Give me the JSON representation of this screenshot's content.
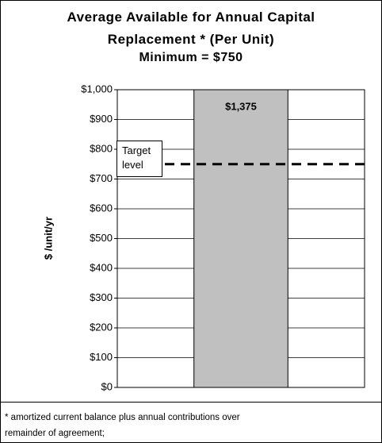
{
  "chart_data": {
    "type": "bar",
    "title": "Average Available for Annual Capital Replacement * (Per Unit)",
    "subtitle": "Minimum = $750",
    "y_label": "$ /unit/yr",
    "categories": [
      null
    ],
    "values": [
      1375
    ],
    "value_labels": [
      "$1,375"
    ],
    "color": "#c0c0c0",
    "ylim": [
      0,
      1000
    ],
    "yticks": [
      {
        "value": 0,
        "label": "$0"
      },
      {
        "value": 100,
        "label": "$100"
      },
      {
        "value": 200,
        "label": "$200"
      },
      {
        "value": 300,
        "label": "$300"
      },
      {
        "value": 400,
        "label": "$400"
      },
      {
        "value": 500,
        "label": "$500"
      },
      {
        "value": 600,
        "label": "$600"
      },
      {
        "value": 700,
        "label": "$700"
      },
      {
        "value": 800,
        "label": "$800"
      },
      {
        "value": 900,
        "label": "$900"
      },
      {
        "value": 1000,
        "label": "$1,000"
      }
    ],
    "grid": true,
    "target": {
      "value": 750,
      "label": "Target level"
    },
    "footnote": "* amortized current balance plus annual contributions over remainder of agreement;"
  }
}
